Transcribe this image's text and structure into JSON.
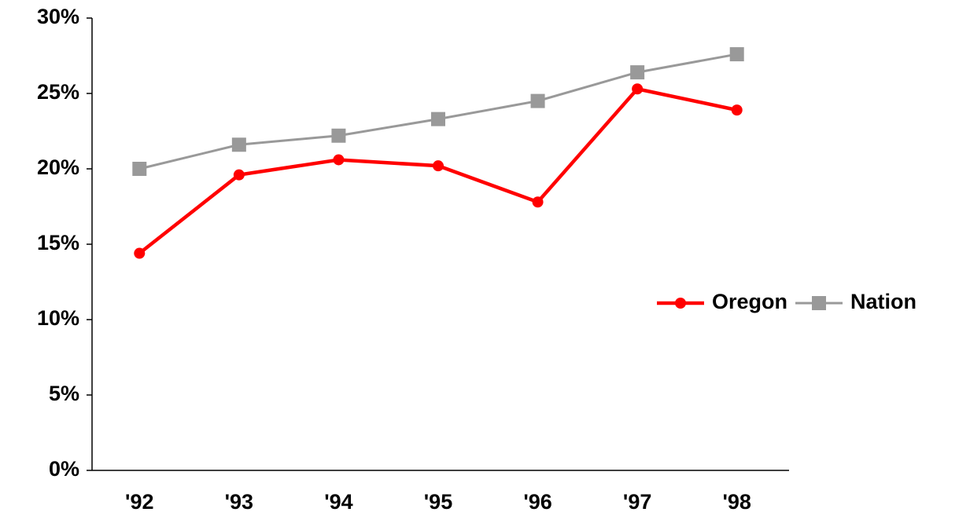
{
  "chart_data": {
    "type": "line",
    "categories": [
      "'92",
      "'93",
      "'94",
      "'95",
      "'96",
      "'97",
      "'98"
    ],
    "series": [
      {
        "name": "Oregon",
        "color": "#ff0000",
        "marker": "circle",
        "values": [
          14.4,
          19.6,
          20.6,
          20.2,
          17.8,
          25.3,
          23.9
        ]
      },
      {
        "name": "Nation",
        "color": "#999999",
        "marker": "square",
        "values": [
          20.0,
          21.6,
          22.2,
          23.3,
          24.5,
          26.4,
          27.6
        ]
      }
    ],
    "ylim": [
      0,
      30
    ],
    "yticks": [
      {
        "value": 0,
        "label": "0%"
      },
      {
        "value": 5,
        "label": "5%"
      },
      {
        "value": 10,
        "label": "10%"
      },
      {
        "value": 15,
        "label": "15%"
      },
      {
        "value": 20,
        "label": "20%"
      },
      {
        "value": 25,
        "label": "25%"
      },
      {
        "value": 30,
        "label": "30%"
      }
    ],
    "grid": false,
    "legend": "right"
  }
}
